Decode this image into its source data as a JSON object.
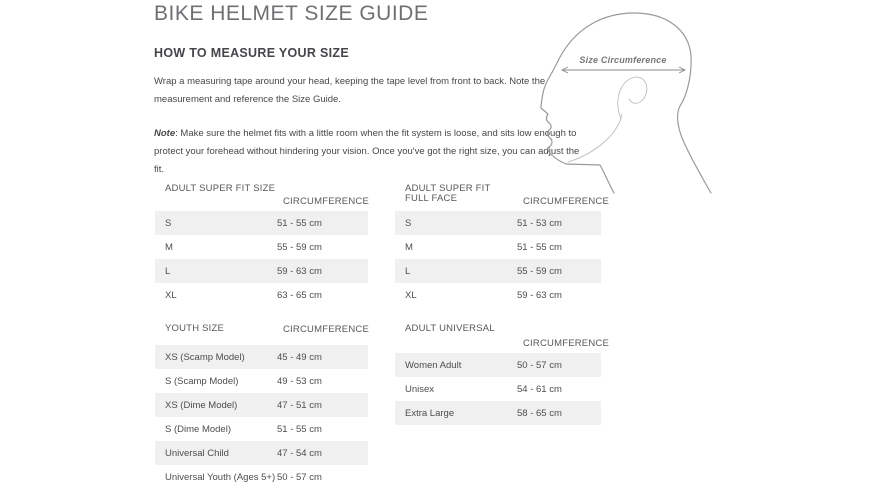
{
  "page": {
    "title": "BIKE HELMET SIZE GUIDE",
    "section_heading": "HOW TO MEASURE YOUR SIZE",
    "intro": "Wrap a measuring tape around your head, keeping the tape level from front to back. Note the measurement and reference the Size Guide.",
    "note_label": "Note",
    "note_body": ": Make sure the helmet fits with a little room when the fit system is loose, and sits low enough to protect your forehead without hindering your vision. Once you've got the right size, you can adjust the fit."
  },
  "diagram": {
    "label": "Size Circumference"
  },
  "tables": [
    {
      "title": "ADULT SUPER FIT SIZE",
      "col2": "CIRCUMFERENCE",
      "rows": [
        [
          "S",
          "51 - 55 cm"
        ],
        [
          "M",
          "55 - 59 cm"
        ],
        [
          "L",
          "59 - 63 cm"
        ],
        [
          "XL",
          "63 - 65 cm"
        ]
      ]
    },
    {
      "title": "ADULT SUPER FIT\nFULL FACE",
      "col2": "CIRCUMFERENCE",
      "rows": [
        [
          "S",
          "51 - 53 cm"
        ],
        [
          "M",
          "51 - 55 cm"
        ],
        [
          "L",
          "55 - 59 cm"
        ],
        [
          "XL",
          "59 - 63 cm"
        ]
      ]
    },
    {
      "title": "YOUTH SIZE",
      "col2": "CIRCUMFERENCE",
      "rows": [
        [
          "XS (Scamp Model)",
          "45 - 49 cm"
        ],
        [
          "S (Scamp Model)",
          "49 - 53 cm"
        ],
        [
          "XS (Dime Model)",
          "47 - 51 cm"
        ],
        [
          "S (Dime Model)",
          "51 - 55 cm"
        ],
        [
          "Universal Child",
          "47 - 54 cm"
        ],
        [
          "Universal Youth (Ages 5+)",
          "50 - 57 cm"
        ]
      ]
    },
    {
      "title": "ADULT UNIVERSAL",
      "col2": "CIRCUMFERENCE",
      "rows": [
        [
          "Women Adult",
          "50 - 57 cm"
        ],
        [
          "Unisex",
          "54 - 61 cm"
        ],
        [
          "Extra Large",
          "58 - 65 cm"
        ]
      ]
    }
  ],
  "colors": {
    "stripe": "#f0f0f0",
    "body_text": "#474747",
    "title_text": "#707074",
    "line_art": "#9a9a9a"
  }
}
